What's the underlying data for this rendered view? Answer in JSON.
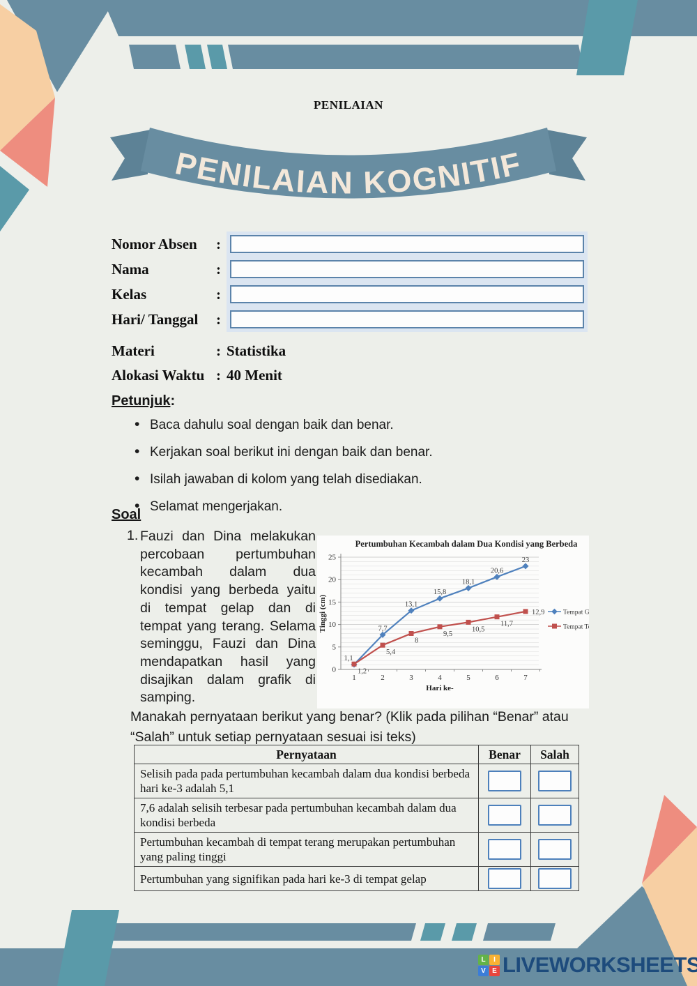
{
  "page": {
    "kicker": "PENILAIAN",
    "banner_title": "PENILAIAN KOGNITIF"
  },
  "form": {
    "rows": [
      {
        "label": "Nomor Absen",
        "colon": ":",
        "input": true
      },
      {
        "label": "Nama",
        "colon": ":",
        "input": true
      },
      {
        "label": "Kelas",
        "colon": ":",
        "input": true
      },
      {
        "label": "Hari/ Tanggal",
        "colon": ":",
        "input": true
      },
      {
        "label": "Materi",
        "colon": ":",
        "value": "Statistika"
      },
      {
        "label": "Alokasi Waktu",
        "colon": ":",
        "value": "40 Menit"
      }
    ]
  },
  "petunjuk": {
    "heading": "Petunjuk",
    "colon": ":",
    "items": [
      "Baca dahulu soal dengan baik dan benar.",
      "Kerjakan soal berikut ini dengan baik dan benar.",
      "Isilah jawaban di kolom yang telah disediakan.",
      "Selamat mengerjakan."
    ]
  },
  "soal": {
    "heading": "Soal",
    "number": "1.",
    "text": "Fauzi dan Dina melakukan percobaan pertumbuhan kecambah dalam dua kondisi yang berbeda yaitu di tempat gelap dan di tempat yang terang. Selama seminggu, Fauzi dan Dina mendapatkan hasil yang disajikan dalam grafik di samping.",
    "prompt": "Manakah pernyataan berikut yang benar? (Klik pada pilihan “Benar” atau “Salah” untuk setiap pernyataan sesuai isi teks)"
  },
  "chart_data": {
    "type": "line",
    "title": "Pertumbuhan Kecambah dalam Dua Kondisi yang Berbeda",
    "xlabel": "Hari ke-",
    "ylabel": "Tinggi (cm)",
    "x": [
      1,
      2,
      3,
      4,
      5,
      6,
      7
    ],
    "yticks": [
      0,
      5,
      10,
      15,
      20,
      25
    ],
    "ylim": [
      0,
      25
    ],
    "grid": "minor horizontal gridlines every 1 cm",
    "legend_position": "right (clipped at page edge)",
    "series": [
      {
        "name": "Tempat Ge",
        "color": "#4f81bd",
        "marker": "diamond",
        "values": [
          1.1,
          7.7,
          13.1,
          15.8,
          18.1,
          20.6,
          23
        ],
        "labels": [
          "1,1",
          "7,7",
          "13,1",
          "15,8",
          "18,1",
          "20,6",
          "23"
        ]
      },
      {
        "name": "Tempat Te",
        "color": "#c0504d",
        "marker": "square",
        "values": [
          1.2,
          5.4,
          8,
          9.5,
          10.5,
          11.7,
          12.9
        ],
        "labels": [
          "1,2",
          "5,4",
          "8",
          "9,5",
          "10,5",
          "11,7",
          "12,9"
        ]
      }
    ]
  },
  "table": {
    "headers": [
      "Pernyataan",
      "Benar",
      "Salah"
    ],
    "rows": [
      "Selisih pada pada pertumbuhan kecambah dalam dua kondisi berbeda hari ke-3 adalah 5,1",
      "7,6 adalah selisih terbesar pada pertumbuhan kecambah dalam dua kondisi berbeda",
      "Pertumbuhan kecambah di tempat terang merupakan pertumbuhan yang paling tinggi",
      "Pertumbuhan yang signifikan pada hari ke-3 di tempat gelap"
    ]
  },
  "footer": {
    "brand": "LIVEWORKSHEETS",
    "logo": [
      {
        "letter": "L",
        "color": "#63b348"
      },
      {
        "letter": "I",
        "color": "#f9b233"
      },
      {
        "letter": "V",
        "color": "#3b7dd8"
      },
      {
        "letter": "E",
        "color": "#e9453d"
      }
    ]
  },
  "colors": {
    "background": "#edefea",
    "band_blue": "#688da1",
    "teal": "#5a9aa9",
    "peach": "#f7cfa3",
    "salmon": "#ee8d7f",
    "ribbon_text": "#f3e8da",
    "series_blue": "#4f81bd",
    "series_red": "#c0504d",
    "checkbox_border": "#4d80bb",
    "input_border": "#5b83aa",
    "brand_navy": "#1d4b7c"
  }
}
